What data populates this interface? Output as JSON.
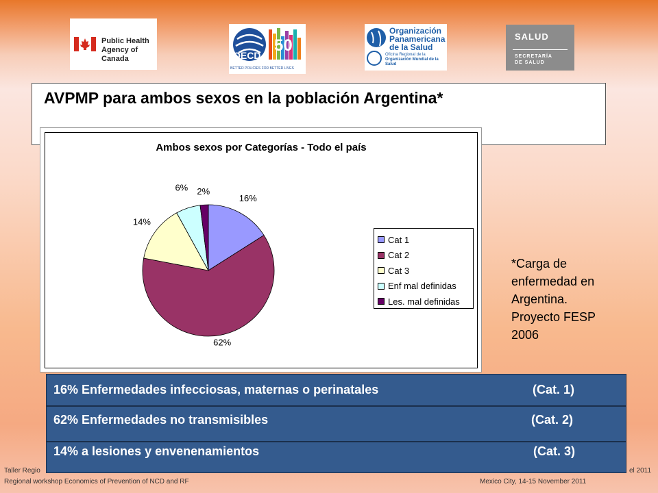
{
  "logos": {
    "phac": {
      "line1": "Public Health",
      "line2": "Agency of Canada"
    },
    "oecd": {
      "name": "OECD",
      "tagline": "BETTER POLICIES FOR BETTER LIVES",
      "anniv": "50"
    },
    "ops": {
      "line1": "Organización",
      "line2": "Panamericana",
      "line3": "de la Salud",
      "sub1": "Oficina Regional de la",
      "sub2": "Organización Mundial de la Salud"
    },
    "salud": {
      "name": "SALUD",
      "sub1": "SECRETARÍA",
      "sub2": "DE SALUD"
    }
  },
  "title": "AVPMP para ambos sexos en la población Argentina*",
  "chart_data": {
    "type": "pie",
    "title": "Ambos sexos por Categorías - Todo el país",
    "categories": [
      "Cat 1",
      "Cat 2",
      "Cat 3",
      "Enf mal definidas",
      "Les. mal definidas"
    ],
    "values": [
      16,
      62,
      14,
      6,
      2
    ],
    "data_labels": [
      "16%",
      "62%",
      "14%",
      "6%",
      "2%"
    ],
    "colors": [
      "#9999ff",
      "#993366",
      "#ffffcc",
      "#ccffff",
      "#660066"
    ],
    "legend_position": "right"
  },
  "note": [
    "*Carga de",
    "enfermedad en",
    "Argentina.",
    "Proyecto FESP",
    "2006"
  ],
  "rows": [
    {
      "desc": "16% Enfermedades infecciosas, maternas o perinatales",
      "cat": "(Cat. 1)"
    },
    {
      "desc": "62% Enfermedades no   transmisibles",
      "cat": "(Cat. 2)"
    },
    {
      "desc": "14% a lesiones y envenenamientos",
      "cat": "(Cat. 3)"
    }
  ],
  "footer": {
    "left1": "Taller Regio",
    "left2": "Regional workshop Economics of Prevention of NCD and RF",
    "right1": "el 2011",
    "right2": "Mexico City, 14-15 November  2011"
  }
}
